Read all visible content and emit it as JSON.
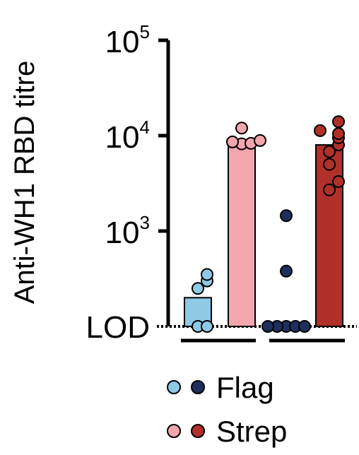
{
  "chart_data": {
    "type": "bar",
    "ylabel": "Anti-WH1 RBD titre",
    "yscale": "log",
    "ylim": [
      100,
      100000
    ],
    "y_ticks": [
      {
        "base": "10",
        "exp": "5",
        "value": 100000
      },
      {
        "base": "10",
        "exp": "4",
        "value": 10000
      },
      {
        "base": "10",
        "exp": "3",
        "value": 1000
      }
    ],
    "lod_label": "LOD",
    "lod_value": 100,
    "grid": false,
    "legend_position": "bottom",
    "groups": [
      {
        "series": [
          {
            "name": "Flag",
            "color": "#8ecae6",
            "bar_value": 200,
            "points": [
              100,
              100,
              250,
              300,
              350
            ]
          },
          {
            "name": "Strep",
            "color": "#f4a6ae",
            "bar_value": 8500,
            "points": [
              8200,
              8300,
              8600,
              8900,
              12000
            ]
          }
        ]
      },
      {
        "series": [
          {
            "name": "Flag",
            "color": "#1d2f5e",
            "bar_value": 100,
            "points": [
              100,
              100,
              100,
              100,
              100,
              380,
              1450
            ]
          },
          {
            "name": "Strep",
            "color": "#b0302a",
            "bar_value": 8000,
            "points": [
              2700,
              3300,
              5000,
              6800,
              8000,
              9500,
              10500,
              11300,
              14000
            ]
          }
        ]
      }
    ],
    "legend": [
      {
        "label": "Flag",
        "colors": [
          "#8ecae6",
          "#1d2f5e"
        ]
      },
      {
        "label": "Strep",
        "colors": [
          "#f4a6ae",
          "#b0302a"
        ]
      }
    ]
  }
}
